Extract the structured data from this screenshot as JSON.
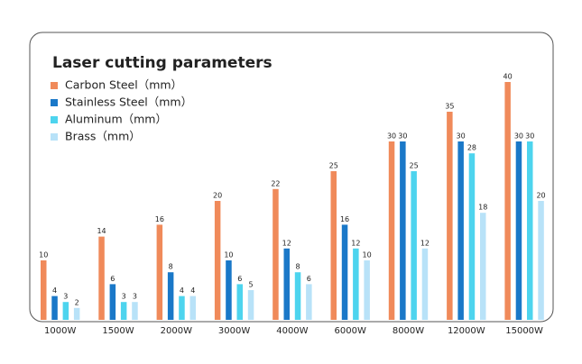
{
  "chart_data": {
    "type": "bar",
    "title": "Laser cutting parameters",
    "categories": [
      "1000W",
      "1500W",
      "2000W",
      "3000W",
      "4000W",
      "6000W",
      "8000W",
      "12000W",
      "15000W"
    ],
    "series": [
      {
        "name": "Carbon Steel（mm）",
        "color": "#f08a5a",
        "values": [
          10,
          14,
          16,
          20,
          22,
          25,
          30,
          35,
          40
        ]
      },
      {
        "name": "Stainless Steel（mm）",
        "color": "#1a78c8",
        "values": [
          4,
          6,
          8,
          10,
          12,
          16,
          30,
          30,
          30
        ]
      },
      {
        "name": "Aluminum（mm）",
        "color": "#4dd4ee",
        "values": [
          3,
          3,
          4,
          6,
          8,
          12,
          25,
          28,
          30
        ]
      },
      {
        "name": "Brass（mm）",
        "color": "#b8e2f8",
        "values": [
          2,
          3,
          4,
          5,
          6,
          10,
          12,
          18,
          20
        ]
      }
    ]
  }
}
